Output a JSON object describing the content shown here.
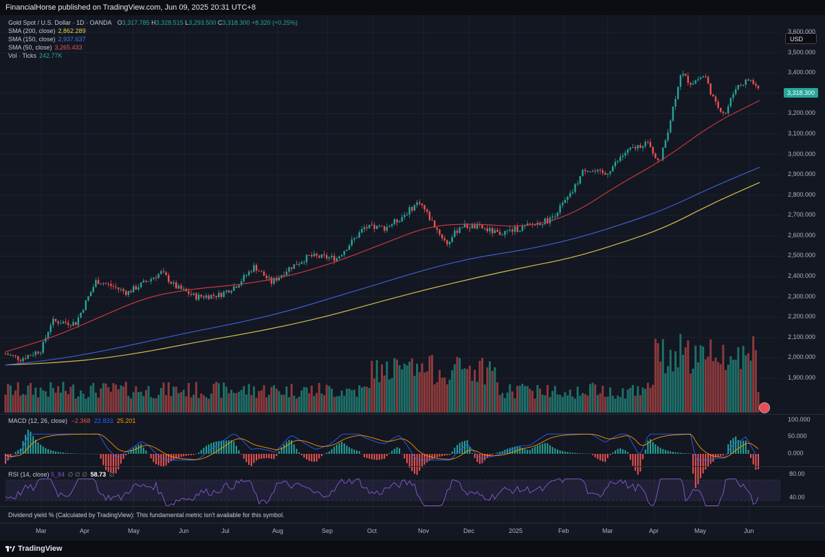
{
  "header": {
    "publish_line": "FinancialHorse published on TradingView.com, Jun 09, 2025 20:31 UTC+8"
  },
  "legend": {
    "symbol": "Gold Spot / U.S. Dollar · 1D · OANDA",
    "ohlc": {
      "o_label": "O",
      "o": "3,317.785",
      "h_label": "H",
      "h": "3,328.515",
      "l_label": "L",
      "l": "3,293.500",
      "c_label": "C",
      "c": "3,318.300",
      "change": "+8.320 (+0.25%)"
    },
    "sma200": {
      "label": "SMA (200, close)",
      "value": "2,862.289",
      "color": "#e8d34a"
    },
    "sma150": {
      "label": "SMA (150, close)",
      "value": "2,937.637",
      "color": "#3d66d6"
    },
    "sma50": {
      "label": "SMA (50, close)",
      "value": "3,265.433",
      "color": "#d8474a"
    },
    "vol": {
      "label": "Vol · Ticks",
      "value": "242.77K",
      "color": "#26a69a"
    }
  },
  "currency": "USD",
  "last_price": "3,318.300",
  "price_axis": {
    "labels": [
      "3,600.000",
      "3,500.000",
      "3,400.000",
      "3,300.000",
      "3,200.000",
      "3,100.000",
      "3,000.000",
      "2,900.000",
      "2,800.000",
      "2,700.000",
      "2,600.000",
      "2,500.000",
      "2,400.000",
      "2,300.000",
      "2,200.000",
      "2,100.000",
      "2,000.000",
      "1,900.000"
    ]
  },
  "macd": {
    "label": "MACD (12, 26, close)",
    "hist": "−2.368",
    "macd": "22.833",
    "signal": "25.201",
    "axis": [
      "100.000",
      "50.000",
      "0.000"
    ]
  },
  "rsi": {
    "label": "RSI (14, close)",
    "value_partial": "5_84",
    "placeholders": "∅ ∅ ∅",
    "value": "58.73",
    "end": "∅",
    "axis": [
      "80.00",
      "40.00"
    ]
  },
  "dividend_note": "Dividend yield % (Calculated by TradingView): This fundamental metric isn't available for this symbol.",
  "time_axis": [
    "Mar",
    "Apr",
    "May",
    "Jun",
    "Jul",
    "Aug",
    "Sep",
    "Oct",
    "Nov",
    "Dec",
    "2025",
    "Feb",
    "Mar",
    "Apr",
    "May",
    "Jun"
  ],
  "footer": {
    "brand": "TradingView"
  },
  "colors": {
    "up": "#26a69a",
    "down": "#ef5350",
    "macd_line": "#2962ff",
    "signal_line": "#ff9800",
    "rsi_line": "#7e57c2"
  },
  "chart_data": {
    "type": "line",
    "series": [
      {
        "name": "SMA (200, close)",
        "x": [
          "Feb",
          "Mar",
          "Apr",
          "May",
          "Jun",
          "Jul",
          "Aug",
          "Sep",
          "Oct",
          "Nov",
          "Dec",
          "2025",
          "Feb",
          "Mar",
          "Apr",
          "May",
          "Jun"
        ],
        "values": [
          1965,
          1975,
          1995,
          2030,
          2075,
          2115,
          2160,
          2215,
          2280,
          2340,
          2395,
          2445,
          2490,
          2560,
          2640,
          2760,
          2862
        ]
      },
      {
        "name": "SMA (150, close)",
        "x": [
          "Feb",
          "Mar",
          "Apr",
          "May",
          "Jun",
          "Jul",
          "Aug",
          "Sep",
          "Oct",
          "Nov",
          "Dec",
          "2025",
          "Feb",
          "Mar",
          "Apr",
          "May",
          "Jun"
        ],
        "values": [
          1965,
          1990,
          2030,
          2080,
          2130,
          2175,
          2230,
          2300,
          2370,
          2440,
          2495,
          2530,
          2580,
          2650,
          2730,
          2840,
          2937
        ]
      },
      {
        "name": "SMA (50, close)",
        "x": [
          "Feb",
          "Mar",
          "Apr",
          "May",
          "Jun",
          "Jul",
          "Aug",
          "Sep",
          "Oct",
          "Nov",
          "Dec",
          "2025",
          "Feb",
          "Mar",
          "Apr",
          "May",
          "Jun"
        ],
        "values": [
          2030,
          2100,
          2200,
          2300,
          2340,
          2360,
          2400,
          2470,
          2560,
          2650,
          2660,
          2640,
          2700,
          2850,
          2980,
          3150,
          3265
        ]
      }
    ],
    "ylim": [
      1850,
      3600
    ]
  }
}
